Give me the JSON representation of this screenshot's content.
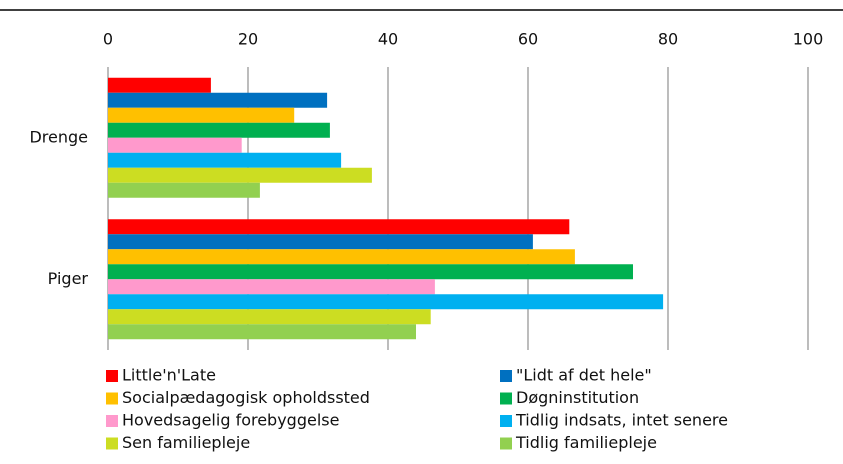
{
  "chart_data": {
    "type": "hbar",
    "categories": [
      "Drenge",
      "Piger"
    ],
    "series": [
      {
        "name": "Little'n'Late",
        "color": "#ff0000",
        "values": [
          14.7,
          65.9
        ]
      },
      {
        "name": "\"Lidt af det hele\"",
        "color": "#0070c0",
        "values": [
          31.3,
          60.7
        ]
      },
      {
        "name": "Socialpædagogisk opholdssted",
        "color": "#ffc000",
        "values": [
          26.6,
          66.7
        ]
      },
      {
        "name": "Døgninstitution",
        "color": "#00b050",
        "values": [
          31.7,
          75
        ]
      },
      {
        "name": "Hovedsagelig forebyggelse",
        "color": "#ff99cc",
        "values": [
          19.1,
          46.7
        ]
      },
      {
        "name": "Tidlig indsats, intet senere",
        "color": "#00b0f0",
        "values": [
          33.3,
          79.3
        ]
      },
      {
        "name": "Sen familiepleje",
        "color": "#ccdd22",
        "values": [
          37.7,
          46.1
        ]
      },
      {
        "name": "Tidlig familiepleje",
        "color": "#92d050",
        "values": [
          21.7,
          44
        ]
      }
    ],
    "xlim": [
      0,
      100
    ],
    "xticks": [
      0,
      20,
      40,
      60,
      80,
      100
    ],
    "grid": true,
    "legend": "bottom"
  }
}
